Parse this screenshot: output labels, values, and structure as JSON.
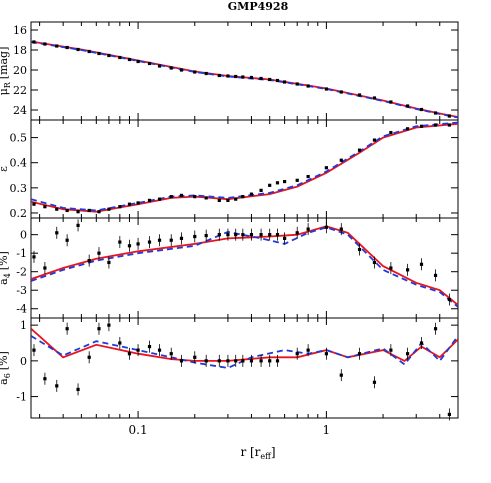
{
  "title": "GMP4928",
  "x_axis": {
    "label": "r [r",
    "label_sub": "eff",
    "label_end": "]",
    "scale": "log",
    "range": [
      0.027,
      5.0
    ],
    "ticks": [
      {
        "value": 0.1,
        "label": "0.1"
      },
      {
        "value": 1,
        "label": "1"
      }
    ]
  },
  "colors": {
    "red": "#e8141e",
    "blue": "#1f3ad6",
    "points": "#000000"
  },
  "chart_data": [
    {
      "type": "scatter",
      "panel": "mu",
      "ylabel": "μ",
      "ylabel_sub": "R",
      "ylabel_unit": "[mag]",
      "ylim": [
        25.0,
        15.2
      ],
      "y_inverted": true,
      "yticks": [
        16,
        18,
        20,
        22,
        24
      ],
      "points": [
        [
          0.028,
          17.2
        ],
        [
          0.032,
          17.4
        ],
        [
          0.037,
          17.6
        ],
        [
          0.042,
          17.75
        ],
        [
          0.048,
          17.95
        ],
        [
          0.055,
          18.15
        ],
        [
          0.062,
          18.35
        ],
        [
          0.07,
          18.55
        ],
        [
          0.08,
          18.75
        ],
        [
          0.09,
          18.95
        ],
        [
          0.1,
          19.15
        ],
        [
          0.115,
          19.35
        ],
        [
          0.13,
          19.6
        ],
        [
          0.15,
          19.8
        ],
        [
          0.17,
          20.0
        ],
        [
          0.2,
          20.2
        ],
        [
          0.23,
          20.35
        ],
        [
          0.27,
          20.55
        ],
        [
          0.3,
          20.6
        ],
        [
          0.33,
          20.65
        ],
        [
          0.36,
          20.7
        ],
        [
          0.4,
          20.75
        ],
        [
          0.45,
          20.85
        ],
        [
          0.5,
          20.95
        ],
        [
          0.55,
          21.05
        ],
        [
          0.6,
          21.2
        ],
        [
          0.7,
          21.4
        ],
        [
          0.8,
          21.6
        ],
        [
          1.0,
          21.9
        ],
        [
          1.2,
          22.2
        ],
        [
          1.5,
          22.5
        ],
        [
          1.8,
          22.8
        ],
        [
          2.2,
          23.2
        ],
        [
          2.7,
          23.6
        ],
        [
          3.2,
          23.95
        ],
        [
          3.8,
          24.3
        ],
        [
          4.5,
          24.6
        ]
      ],
      "red_model": [
        [
          0.027,
          17.15
        ],
        [
          0.05,
          17.95
        ],
        [
          0.1,
          19.05
        ],
        [
          0.2,
          20.15
        ],
        [
          0.3,
          20.6
        ],
        [
          0.5,
          20.95
        ],
        [
          0.8,
          21.55
        ],
        [
          1.0,
          21.85
        ],
        [
          2.0,
          23.05
        ],
        [
          3.0,
          23.85
        ],
        [
          4.0,
          24.35
        ],
        [
          5.0,
          24.7
        ]
      ],
      "blue_model": [
        [
          0.027,
          17.2
        ],
        [
          0.05,
          18.0
        ],
        [
          0.1,
          19.1
        ],
        [
          0.2,
          20.2
        ],
        [
          0.3,
          20.65
        ],
        [
          0.5,
          21.0
        ],
        [
          0.8,
          21.6
        ],
        [
          1.0,
          21.9
        ],
        [
          2.0,
          23.1
        ],
        [
          3.0,
          23.9
        ],
        [
          4.0,
          24.4
        ],
        [
          5.0,
          24.75
        ]
      ]
    },
    {
      "type": "scatter",
      "panel": "ellipticity",
      "ylabel": "ε",
      "ylim": [
        0.18,
        0.57
      ],
      "yticks": [
        0.2,
        0.3,
        0.4,
        0.5
      ],
      "points": [
        [
          0.028,
          0.235
        ],
        [
          0.032,
          0.225
        ],
        [
          0.037,
          0.215
        ],
        [
          0.042,
          0.21
        ],
        [
          0.048,
          0.205
        ],
        [
          0.055,
          0.21
        ],
        [
          0.062,
          0.205
        ],
        [
          0.07,
          0.215
        ],
        [
          0.08,
          0.225
        ],
        [
          0.09,
          0.235
        ],
        [
          0.1,
          0.24
        ],
        [
          0.115,
          0.25
        ],
        [
          0.13,
          0.255
        ],
        [
          0.15,
          0.265
        ],
        [
          0.17,
          0.27
        ],
        [
          0.2,
          0.265
        ],
        [
          0.23,
          0.26
        ],
        [
          0.27,
          0.25
        ],
        [
          0.3,
          0.25
        ],
        [
          0.33,
          0.255
        ],
        [
          0.36,
          0.265
        ],
        [
          0.4,
          0.275
        ],
        [
          0.45,
          0.29
        ],
        [
          0.5,
          0.31
        ],
        [
          0.55,
          0.32
        ],
        [
          0.6,
          0.325
        ],
        [
          0.7,
          0.33
        ],
        [
          0.8,
          0.345
        ],
        [
          1.0,
          0.38
        ],
        [
          1.2,
          0.41
        ],
        [
          1.5,
          0.45
        ],
        [
          1.8,
          0.49
        ],
        [
          2.2,
          0.52
        ],
        [
          2.7,
          0.535
        ],
        [
          3.2,
          0.545
        ],
        [
          3.8,
          0.55
        ],
        [
          4.5,
          0.55
        ]
      ],
      "red_model": [
        [
          0.027,
          0.245
        ],
        [
          0.04,
          0.215
        ],
        [
          0.06,
          0.205
        ],
        [
          0.1,
          0.235
        ],
        [
          0.15,
          0.26
        ],
        [
          0.2,
          0.265
        ],
        [
          0.3,
          0.255
        ],
        [
          0.5,
          0.275
        ],
        [
          0.7,
          0.305
        ],
        [
          1.0,
          0.36
        ],
        [
          1.5,
          0.44
        ],
        [
          2.0,
          0.5
        ],
        [
          3.0,
          0.54
        ],
        [
          5.0,
          0.555
        ]
      ],
      "blue_model": [
        [
          0.027,
          0.255
        ],
        [
          0.04,
          0.22
        ],
        [
          0.06,
          0.21
        ],
        [
          0.1,
          0.24
        ],
        [
          0.15,
          0.265
        ],
        [
          0.2,
          0.27
        ],
        [
          0.3,
          0.26
        ],
        [
          0.5,
          0.28
        ],
        [
          0.7,
          0.31
        ],
        [
          1.0,
          0.365
        ],
        [
          1.5,
          0.445
        ],
        [
          2.0,
          0.505
        ],
        [
          3.0,
          0.545
        ],
        [
          5.0,
          0.56
        ]
      ]
    },
    {
      "type": "scatter",
      "panel": "a4",
      "ylabel": "a",
      "ylabel_sub": "4",
      "ylabel_unit": "[%]",
      "ylim": [
        -4.5,
        0.9
      ],
      "yticks": [
        0,
        -1,
        -2,
        -3,
        -4
      ],
      "points": [
        [
          0.028,
          -1.2
        ],
        [
          0.032,
          -1.8
        ],
        [
          0.037,
          0.1
        ],
        [
          0.042,
          -0.3
        ],
        [
          0.048,
          0.5
        ],
        [
          0.055,
          -1.4
        ],
        [
          0.062,
          -1.0
        ],
        [
          0.07,
          -1.5
        ],
        [
          0.08,
          -0.4
        ],
        [
          0.09,
          -0.6
        ],
        [
          0.1,
          -0.5
        ],
        [
          0.115,
          -0.4
        ],
        [
          0.13,
          -0.3
        ],
        [
          0.15,
          -0.3
        ],
        [
          0.17,
          -0.2
        ],
        [
          0.2,
          -0.1
        ],
        [
          0.23,
          -0.05
        ],
        [
          0.27,
          0.0
        ],
        [
          0.3,
          0.0
        ],
        [
          0.33,
          0.0
        ],
        [
          0.36,
          0.0
        ],
        [
          0.4,
          0.0
        ],
        [
          0.45,
          0.0
        ],
        [
          0.5,
          0.0
        ],
        [
          0.55,
          0.0
        ],
        [
          0.6,
          -0.2
        ],
        [
          0.7,
          0.1
        ],
        [
          0.8,
          0.3
        ],
        [
          1.0,
          0.4
        ],
        [
          1.2,
          0.3
        ],
        [
          1.5,
          -0.8
        ],
        [
          1.8,
          -1.5
        ],
        [
          2.2,
          -1.8
        ],
        [
          2.7,
          -1.9
        ],
        [
          3.2,
          -1.6
        ],
        [
          3.8,
          -2.2
        ],
        [
          4.5,
          -3.5
        ]
      ],
      "red_model": [
        [
          0.027,
          -2.4
        ],
        [
          0.04,
          -1.8
        ],
        [
          0.06,
          -1.3
        ],
        [
          0.1,
          -0.9
        ],
        [
          0.2,
          -0.5
        ],
        [
          0.3,
          -0.2
        ],
        [
          0.5,
          -0.1
        ],
        [
          0.7,
          0.0
        ],
        [
          1.0,
          0.45
        ],
        [
          1.3,
          0.1
        ],
        [
          2.0,
          -1.7
        ],
        [
          3.0,
          -2.6
        ],
        [
          4.0,
          -3.0
        ],
        [
          5.0,
          -3.8
        ]
      ],
      "blue_model": [
        [
          0.027,
          -2.5
        ],
        [
          0.04,
          -1.9
        ],
        [
          0.06,
          -1.4
        ],
        [
          0.1,
          -1.0
        ],
        [
          0.2,
          -0.6
        ],
        [
          0.3,
          0.15
        ],
        [
          0.45,
          -0.2
        ],
        [
          0.6,
          -0.5
        ],
        [
          0.8,
          0.1
        ],
        [
          1.0,
          0.4
        ],
        [
          1.3,
          0.0
        ],
        [
          2.0,
          -1.9
        ],
        [
          3.0,
          -2.7
        ],
        [
          4.0,
          -3.1
        ],
        [
          5.0,
          -3.9
        ]
      ]
    },
    {
      "type": "scatter",
      "panel": "a6",
      "ylabel": "a",
      "ylabel_sub": "6",
      "ylabel_unit": "[%]",
      "ylim": [
        -1.6,
        1.2
      ],
      "yticks": [
        1,
        0,
        -1
      ],
      "xticks": [
        {
          "value": 0.1,
          "label": "0.1"
        },
        {
          "value": 1,
          "label": "1"
        }
      ],
      "points": [
        [
          0.028,
          0.3
        ],
        [
          0.032,
          -0.5
        ],
        [
          0.037,
          -0.7
        ],
        [
          0.042,
          0.9
        ],
        [
          0.048,
          -0.8
        ],
        [
          0.055,
          0.1
        ],
        [
          0.062,
          0.9
        ],
        [
          0.07,
          1.0
        ],
        [
          0.08,
          0.5
        ],
        [
          0.09,
          0.2
        ],
        [
          0.1,
          0.3
        ],
        [
          0.115,
          0.4
        ],
        [
          0.13,
          0.3
        ],
        [
          0.15,
          0.2
        ],
        [
          0.17,
          0.0
        ],
        [
          0.2,
          0.1
        ],
        [
          0.23,
          0.0
        ],
        [
          0.27,
          0.0
        ],
        [
          0.3,
          0.0
        ],
        [
          0.33,
          0.0
        ],
        [
          0.36,
          0.0
        ],
        [
          0.4,
          0.0
        ],
        [
          0.45,
          0.0
        ],
        [
          0.5,
          0.0
        ],
        [
          0.55,
          0.0
        ],
        [
          0.7,
          0.2
        ],
        [
          0.8,
          0.3
        ],
        [
          1.0,
          0.2
        ],
        [
          1.2,
          -0.4
        ],
        [
          1.5,
          0.2
        ],
        [
          1.8,
          -0.6
        ],
        [
          2.2,
          0.3
        ],
        [
          2.7,
          0.2
        ],
        [
          3.2,
          0.5
        ],
        [
          3.8,
          0.9
        ],
        [
          4.5,
          -1.5
        ]
      ],
      "red_model": [
        [
          0.027,
          0.9
        ],
        [
          0.04,
          0.1
        ],
        [
          0.06,
          0.45
        ],
        [
          0.1,
          0.2
        ],
        [
          0.15,
          0.05
        ],
        [
          0.2,
          0.0
        ],
        [
          0.3,
          0.0
        ],
        [
          0.5,
          0.1
        ],
        [
          0.7,
          0.1
        ],
        [
          1.0,
          0.3
        ],
        [
          1.3,
          0.1
        ],
        [
          2.0,
          0.3
        ],
        [
          2.6,
          0.0
        ],
        [
          3.2,
          0.4
        ],
        [
          4.0,
          0.1
        ],
        [
          5.0,
          0.6
        ]
      ],
      "blue_model": [
        [
          0.027,
          0.7
        ],
        [
          0.04,
          0.15
        ],
        [
          0.06,
          0.55
        ],
        [
          0.1,
          0.3
        ],
        [
          0.15,
          0.1
        ],
        [
          0.2,
          -0.05
        ],
        [
          0.3,
          -0.2
        ],
        [
          0.4,
          0.1
        ],
        [
          0.6,
          0.3
        ],
        [
          0.8,
          0.2
        ],
        [
          1.0,
          0.3
        ],
        [
          1.3,
          0.1
        ],
        [
          2.0,
          0.35
        ],
        [
          2.6,
          -0.1
        ],
        [
          3.2,
          0.5
        ],
        [
          4.0,
          0.0
        ],
        [
          5.0,
          0.7
        ]
      ]
    }
  ]
}
